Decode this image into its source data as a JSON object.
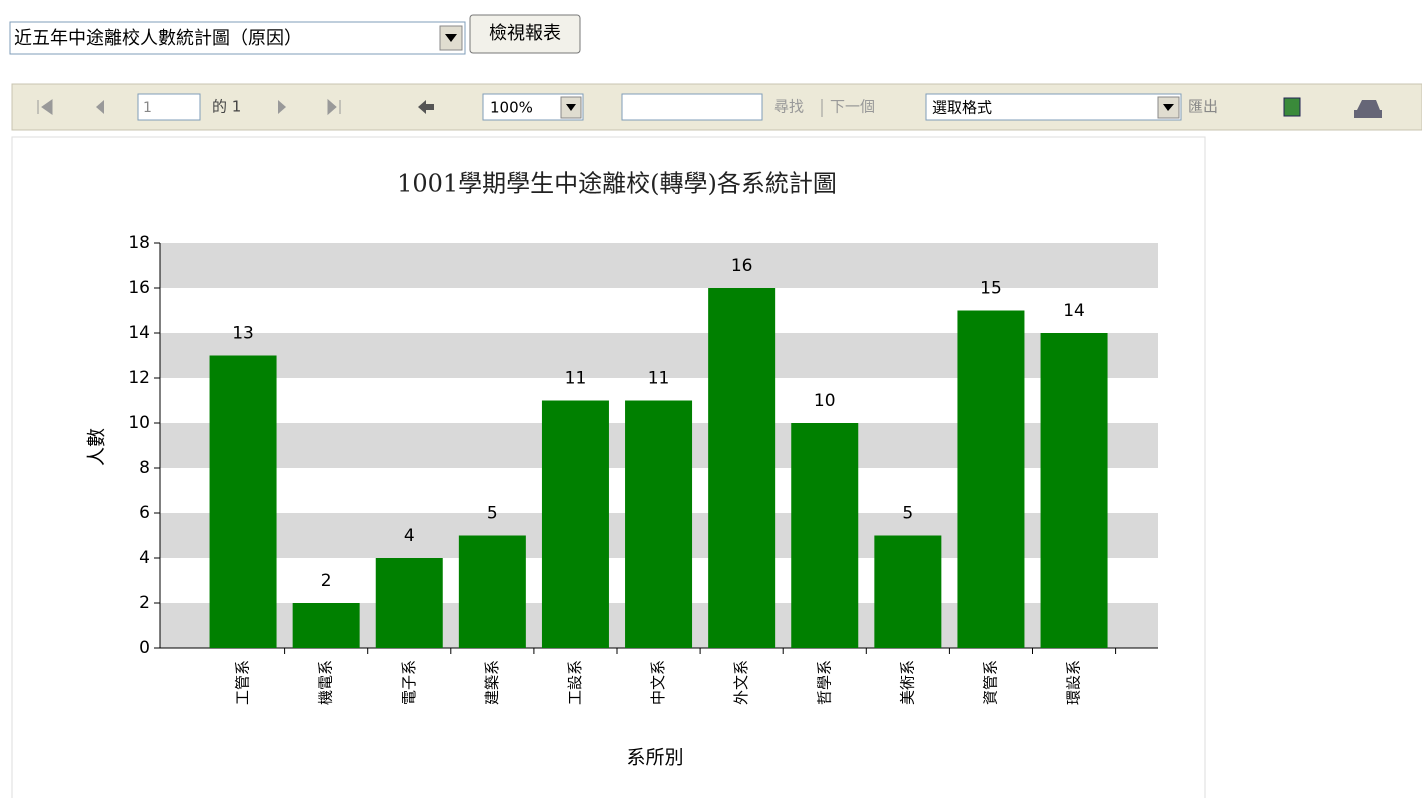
{
  "toolbar": {
    "report_select": "近五年中途離校人數統計圖（原因）",
    "view_button": "檢視報表",
    "page_input": "1",
    "page_of": "的 1",
    "zoom": "100%",
    "find": "尋找",
    "next": "下一個",
    "format_select": "選取格式",
    "export": "匯出"
  },
  "chart_data": {
    "type": "bar",
    "title": "1001學期學生中途離校(轉學)各系統計圖",
    "x_label": "系所別",
    "y_label": "人數",
    "categories": [
      "工管系",
      "機電系",
      "電子系",
      "建築系",
      "工設系",
      "中文系",
      "外文系",
      "哲學系",
      "美術系",
      "資管系",
      "環設系"
    ],
    "values": [
      13,
      2,
      4,
      5,
      11,
      11,
      16,
      10,
      5,
      15,
      14
    ],
    "color": "#008000",
    "ylim": [
      0,
      18
    ],
    "yticks": [
      0,
      2,
      4,
      6,
      8,
      10,
      12,
      14,
      16,
      18
    ],
    "grid": "bands",
    "data_labels": true
  }
}
